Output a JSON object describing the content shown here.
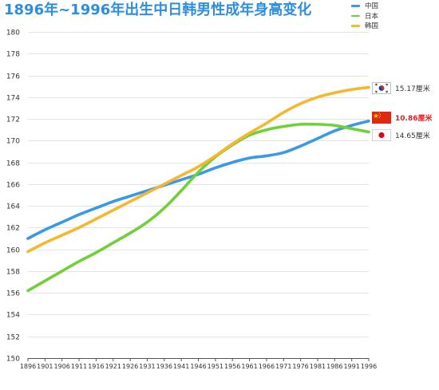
{
  "colors": {
    "title": "#2d8ee0",
    "annotation_text": "#333333"
  },
  "chart_data": {
    "type": "line",
    "title": "1896年~1996年出生中日韩男性成年身高变化",
    "x": [
      1896,
      1901,
      1906,
      1911,
      1916,
      1921,
      1926,
      1931,
      1936,
      1941,
      1946,
      1951,
      1956,
      1961,
      1966,
      1971,
      1976,
      1981,
      1986,
      1991,
      1996
    ],
    "ylim": [
      150,
      180
    ],
    "yticks": [
      150,
      152,
      154,
      156,
      158,
      160,
      162,
      164,
      166,
      168,
      170,
      172,
      174,
      176,
      178,
      180
    ],
    "grid": true,
    "legend_position": "top-right",
    "series": [
      {
        "name": "中国",
        "color": "#3a98e6",
        "values": [
          161.0,
          161.8,
          162.5,
          163.2,
          163.8,
          164.4,
          164.9,
          165.4,
          165.9,
          166.4,
          166.9,
          167.5,
          168.0,
          168.4,
          168.6,
          168.9,
          169.5,
          170.2,
          170.9,
          171.4,
          171.8
        ]
      },
      {
        "name": "日本",
        "color": "#6fd038",
        "values": [
          156.2,
          157.1,
          158.0,
          158.9,
          159.7,
          160.6,
          161.5,
          162.5,
          163.8,
          165.4,
          167.1,
          168.5,
          169.6,
          170.5,
          171.0,
          171.3,
          171.5,
          171.5,
          171.4,
          171.1,
          170.8
        ]
      },
      {
        "name": "韩国",
        "color": "#f5b630",
        "values": [
          159.8,
          160.6,
          161.3,
          162.0,
          162.8,
          163.6,
          164.4,
          165.2,
          166.0,
          166.8,
          167.6,
          168.6,
          169.7,
          170.7,
          171.6,
          172.6,
          173.4,
          174.0,
          174.4,
          174.7,
          174.9
        ]
      }
    ],
    "annotations": [
      {
        "text": "15.17厘米",
        "flag": "south-korea-flag-icon"
      },
      {
        "text": "10.86厘米",
        "flag": "china-flag-icon",
        "color": "#e02020"
      },
      {
        "text": "14.65厘米",
        "flag": "japan-flag-icon"
      }
    ]
  }
}
